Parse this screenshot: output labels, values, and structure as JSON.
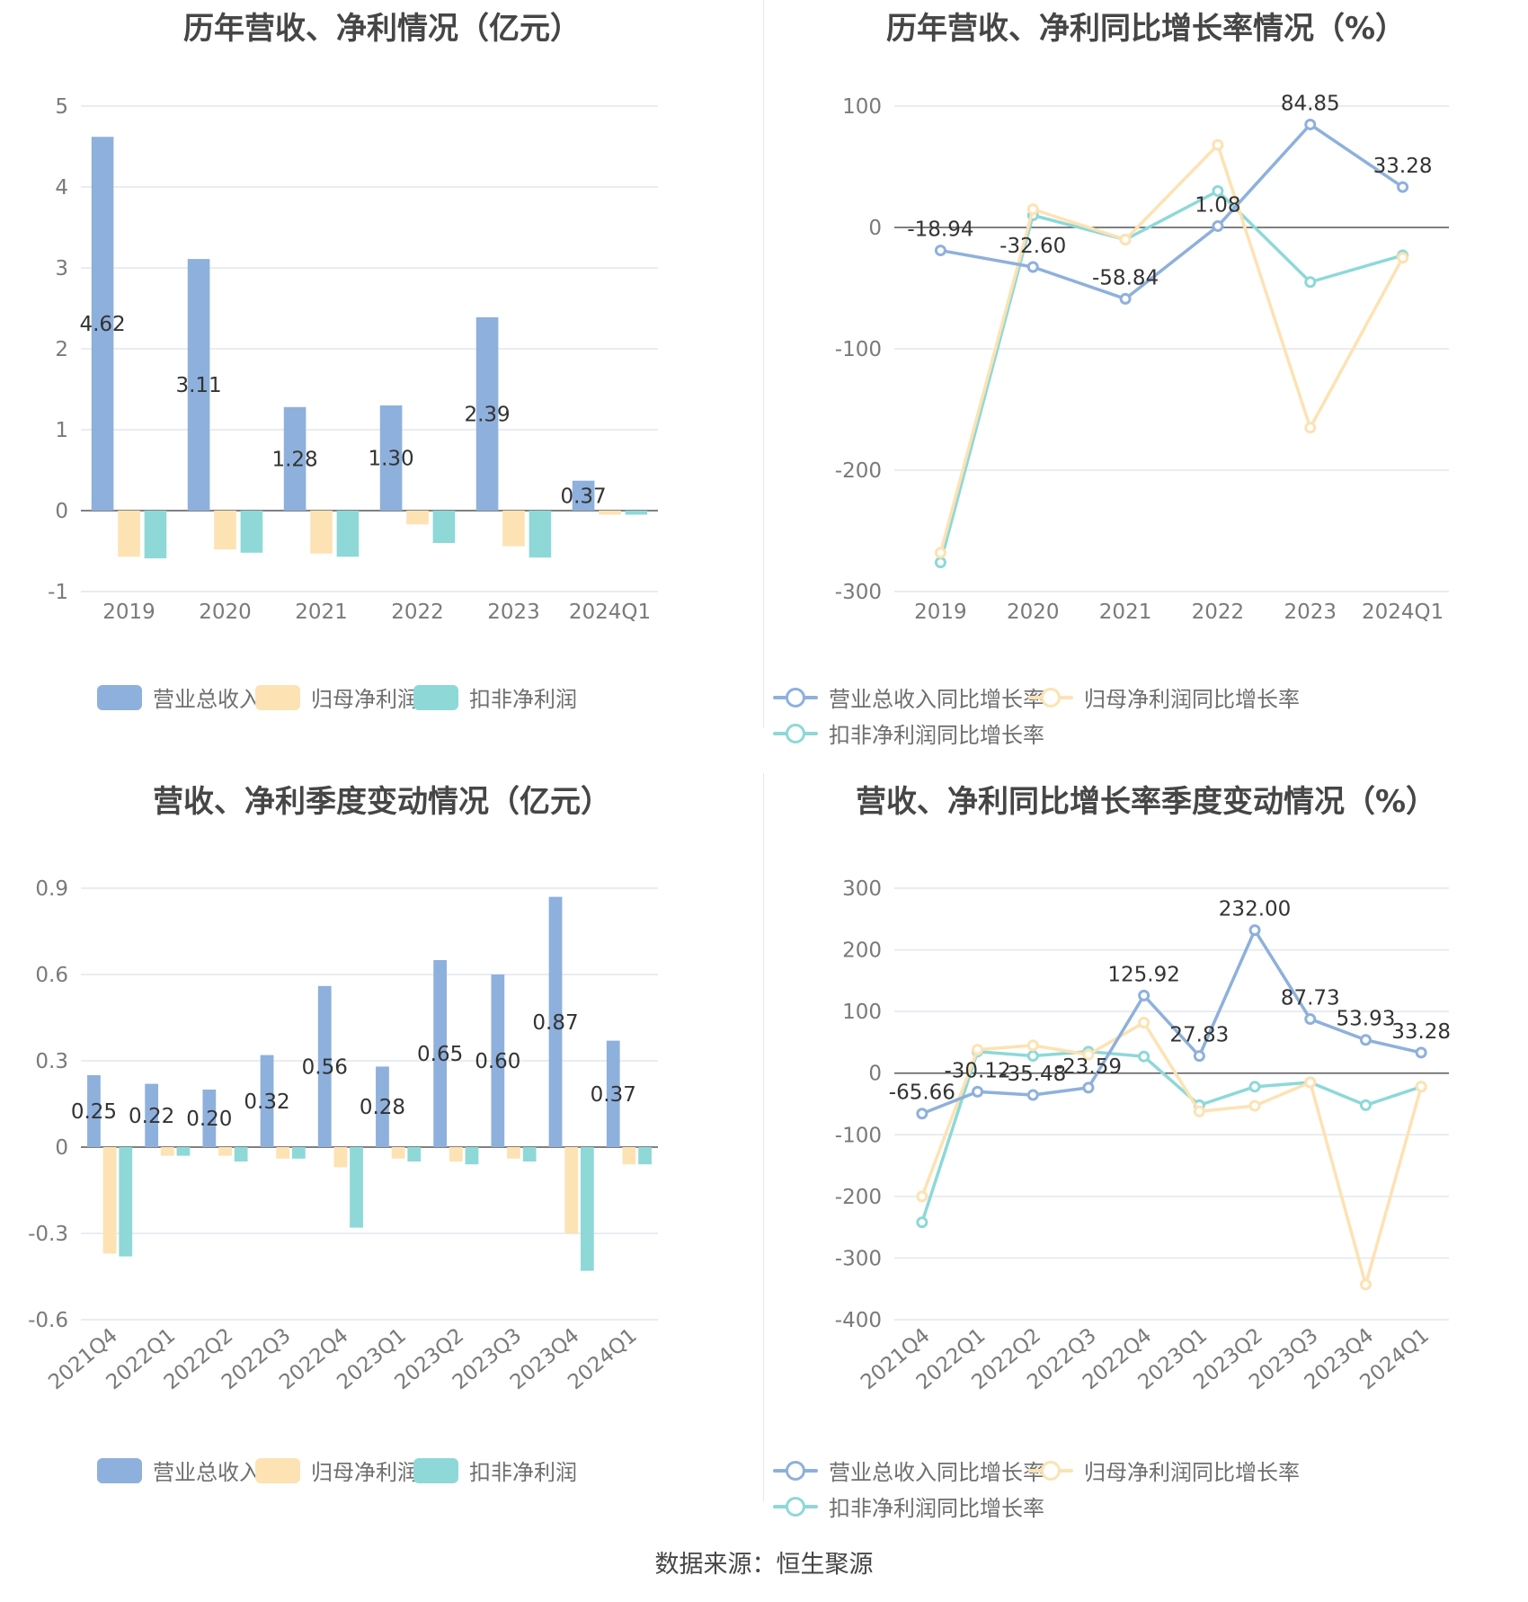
{
  "footer": {
    "source": "数据来源：恒生聚源"
  },
  "colors": {
    "revenue": "#8eb0dc",
    "net_profit": "#fde2b3",
    "deducted_profit": "#8ed8d8"
  },
  "chart_data": [
    {
      "type": "bar",
      "title": "历年营收、净利情况（亿元）",
      "categories": [
        "2019",
        "2020",
        "2021",
        "2022",
        "2023",
        "2024Q1"
      ],
      "ylim": [
        -1,
        5
      ],
      "yticks": [
        5,
        4,
        3,
        2,
        1,
        0,
        -1
      ],
      "grid": true,
      "legend_position": "bottom",
      "label_series": 0,
      "series": [
        {
          "name": "营业总收入",
          "color": "#8eb0dc",
          "values": [
            4.62,
            3.11,
            1.28,
            1.3,
            2.39,
            0.37
          ],
          "labels": [
            "4.62",
            "3.11",
            "1.28",
            "1.30",
            "2.39",
            "0.37"
          ]
        },
        {
          "name": "归母净利润",
          "color": "#fde2b3",
          "values": [
            -0.57,
            -0.48,
            -0.53,
            -0.17,
            -0.44,
            -0.05
          ]
        },
        {
          "name": "扣非净利润",
          "color": "#8ed8d8",
          "values": [
            -0.59,
            -0.52,
            -0.57,
            -0.4,
            -0.58,
            -0.05
          ]
        }
      ]
    },
    {
      "type": "line",
      "title": "历年营收、净利同比增长率情况（%）",
      "categories": [
        "2019",
        "2020",
        "2021",
        "2022",
        "2023",
        "2024Q1"
      ],
      "ylim": [
        -300,
        100
      ],
      "yticks": [
        100,
        0,
        -100,
        -200,
        -300
      ],
      "grid": true,
      "legend_position": "bottom",
      "label_series": 0,
      "series": [
        {
          "name": "营业总收入同比增长率",
          "color": "#8eb0dc",
          "values": [
            -18.94,
            -32.6,
            -58.84,
            1.08,
            84.85,
            33.28
          ],
          "labels": [
            "-18.94",
            "-32.60",
            "-58.84",
            "1.08",
            "84.85",
            "33.28"
          ]
        },
        {
          "name": "归母净利润同比增长率",
          "color": "#fde2b3",
          "values": [
            -268,
            15,
            -10,
            68,
            -165,
            -25
          ]
        },
        {
          "name": "扣非净利润同比增长率",
          "color": "#8ed8d8",
          "values": [
            -276,
            10,
            -10,
            30,
            -45,
            -23
          ]
        }
      ]
    },
    {
      "type": "bar",
      "title": "营收、净利季度变动情况（亿元）",
      "categories": [
        "2021Q4",
        "2022Q1",
        "2022Q2",
        "2022Q3",
        "2022Q4",
        "2023Q1",
        "2023Q2",
        "2023Q3",
        "2023Q4",
        "2024Q1"
      ],
      "ylim": [
        -0.6,
        0.9
      ],
      "yticks": [
        0.9,
        0.6,
        0.3,
        0,
        -0.3,
        -0.6
      ],
      "grid": true,
      "legend_position": "bottom",
      "label_series": 0,
      "rotated_ticks": true,
      "series": [
        {
          "name": "营业总收入",
          "color": "#8eb0dc",
          "values": [
            0.25,
            0.22,
            0.2,
            0.32,
            0.56,
            0.28,
            0.65,
            0.6,
            0.87,
            0.37
          ],
          "labels": [
            "0.25",
            "0.22",
            "0.20",
            "0.32",
            "0.56",
            "0.28",
            "0.65",
            "0.60",
            "0.87",
            "0.37"
          ]
        },
        {
          "name": "归母净利润",
          "color": "#fde2b3",
          "values": [
            -0.37,
            -0.03,
            -0.03,
            -0.04,
            -0.07,
            -0.04,
            -0.05,
            -0.04,
            -0.3,
            -0.06
          ]
        },
        {
          "name": "扣非净利润",
          "color": "#8ed8d8",
          "values": [
            -0.38,
            -0.03,
            -0.05,
            -0.04,
            -0.28,
            -0.05,
            -0.06,
            -0.05,
            -0.43,
            -0.06
          ]
        }
      ]
    },
    {
      "type": "line",
      "title": "营收、净利同比增长率季度变动情况（%）",
      "categories": [
        "2021Q4",
        "2022Q1",
        "2022Q2",
        "2022Q3",
        "2022Q4",
        "2023Q1",
        "2023Q2",
        "2023Q3",
        "2023Q4",
        "2024Q1"
      ],
      "ylim": [
        -400,
        300
      ],
      "yticks": [
        300,
        200,
        100,
        0,
        -100,
        -200,
        -300,
        -400
      ],
      "grid": true,
      "legend_position": "bottom",
      "label_series": 0,
      "rotated_ticks": true,
      "series": [
        {
          "name": "营业总收入同比增长率",
          "color": "#8eb0dc",
          "values": [
            -65.66,
            -30.12,
            -35.48,
            -23.59,
            125.92,
            27.83,
            232.0,
            87.73,
            53.93,
            33.28
          ],
          "labels": [
            "-65.66",
            "-30.12",
            "-35.48",
            "-23.59",
            "125.92",
            "27.83",
            "232.00",
            "87.73",
            "53.93",
            "33.28"
          ]
        },
        {
          "name": "归母净利润同比增长率",
          "color": "#fde2b3",
          "values": [
            -200,
            38,
            45,
            30,
            82,
            -62,
            -53,
            -15,
            -343,
            -22
          ]
        },
        {
          "name": "扣非净利润同比增长率",
          "color": "#8ed8d8",
          "values": [
            -242,
            35,
            28,
            35,
            27,
            -52,
            -22,
            -15,
            -52,
            -22
          ]
        }
      ]
    }
  ]
}
